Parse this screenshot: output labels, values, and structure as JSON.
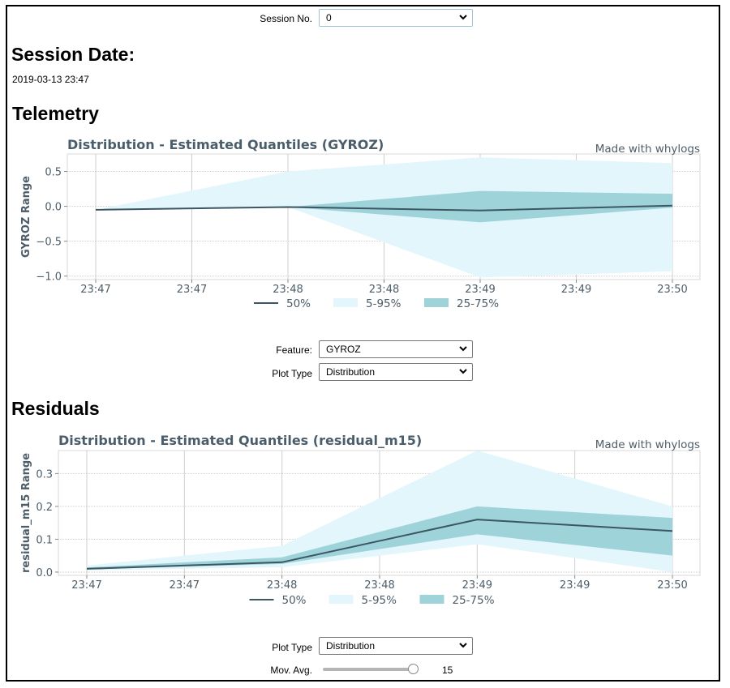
{
  "session": {
    "label": "Session No.",
    "value": "0"
  },
  "session_date": {
    "heading": "Session Date:",
    "value": "2019-03-13 23:47"
  },
  "telemetry": {
    "heading": "Telemetry",
    "feature_label": "Feature:",
    "feature_value": "GYROZ",
    "plot_type_label": "Plot Type",
    "plot_type_value": "Distribution"
  },
  "residuals": {
    "heading": "Residuals",
    "plot_type_label": "Plot Type",
    "plot_type_value": "Distribution",
    "mov_avg_label": "Mov. Avg.",
    "mov_avg_value": "15",
    "mov_avg_fraction": 1.0
  },
  "colors": {
    "median_line": "#3d5663",
    "band_5_95": "#e3f6fb",
    "band_25_75": "#9fd3da",
    "grid": "#cfcfcf",
    "text": "#4d5d68"
  },
  "chart_data": [
    {
      "type": "area",
      "title": "Distribution - Estimated Quantiles (GYROZ)",
      "watermark": "Made with whylogs",
      "ylabel": "GYROZ Range",
      "xlabel": "",
      "x_tick_labels": [
        "23:47",
        "23:47",
        "23:48",
        "23:48",
        "23:49",
        "23:49",
        "23:50"
      ],
      "x": [
        0,
        2,
        4,
        6
      ],
      "ylim": [
        -1.05,
        0.75
      ],
      "yticks": [
        0.5,
        0.0,
        -0.5,
        -1.0
      ],
      "ytick_labels": [
        "0.5",
        "0.0",
        "−0.5",
        "−1.0"
      ],
      "grid": true,
      "legend": [
        "50%",
        "5-95%",
        "25-75%"
      ],
      "legend_placement": "bottom",
      "series": [
        {
          "name": "50%",
          "values": [
            -0.05,
            -0.01,
            -0.06,
            0.01
          ]
        },
        {
          "name": "5-95%",
          "lower": [
            -0.05,
            -0.01,
            -1.02,
            -0.93
          ],
          "upper": [
            -0.05,
            0.5,
            0.7,
            0.62
          ]
        },
        {
          "name": "25-75%",
          "lower": [
            -0.05,
            -0.01,
            -0.23,
            -0.02
          ],
          "upper": [
            -0.05,
            -0.01,
            0.22,
            0.18
          ]
        }
      ]
    },
    {
      "type": "area",
      "title": "Distribution - Estimated Quantiles (residual_m15)",
      "watermark": "Made with whylogs",
      "ylabel": "residual_m15 Range",
      "xlabel": "",
      "x_tick_labels": [
        "23:47",
        "23:47",
        "23:48",
        "23:48",
        "23:49",
        "23:49",
        "23:50"
      ],
      "x": [
        0,
        2,
        4,
        6
      ],
      "ylim": [
        -0.01,
        0.37
      ],
      "yticks": [
        0.3,
        0.2,
        0.1,
        0.0
      ],
      "ytick_labels": [
        "0.3",
        "0.2",
        "0.1",
        "0.0"
      ],
      "grid": true,
      "legend": [
        "50%",
        "5-95%",
        "25-75%"
      ],
      "legend_placement": "bottom",
      "series": [
        {
          "name": "50%",
          "values": [
            0.01,
            0.03,
            0.16,
            0.125
          ]
        },
        {
          "name": "5-95%",
          "lower": [
            0.005,
            0.015,
            0.085,
            0.0
          ],
          "upper": [
            0.02,
            0.08,
            0.37,
            0.2
          ]
        },
        {
          "name": "25-75%",
          "lower": [
            0.008,
            0.025,
            0.115,
            0.05
          ],
          "upper": [
            0.014,
            0.045,
            0.2,
            0.165
          ]
        }
      ]
    }
  ]
}
